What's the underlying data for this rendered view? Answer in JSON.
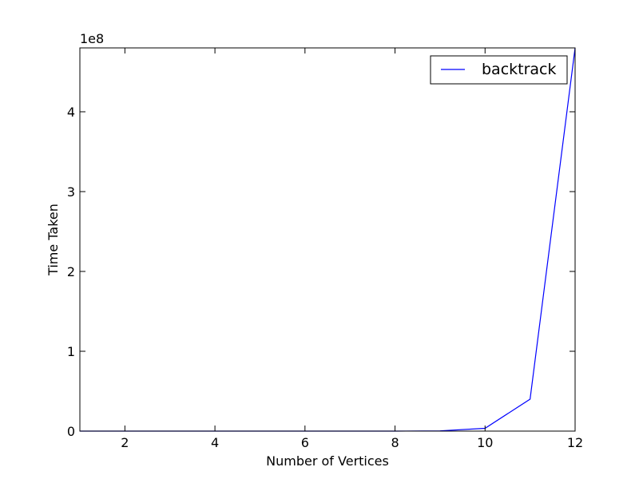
{
  "chart_data": {
    "type": "line",
    "title": "",
    "xlabel": "Number of Vertices",
    "ylabel": "Time Taken",
    "y_offset_text": "1e8",
    "y_scale_factor": 100000000,
    "xlim": [
      1,
      12
    ],
    "ylim": [
      0,
      480000000
    ],
    "xticks": [
      2,
      4,
      6,
      8,
      10,
      12
    ],
    "xtick_labels": [
      "2",
      "4",
      "6",
      "8",
      "10",
      "12"
    ],
    "yticks": [
      0,
      100000000,
      200000000,
      300000000,
      400000000
    ],
    "ytick_labels": [
      "0",
      "1",
      "2",
      "3",
      "4"
    ],
    "grid": false,
    "legend_position": "top-right",
    "series": [
      {
        "name": "backtrack",
        "color": "#0000ff",
        "x": [
          1,
          2,
          3,
          4,
          5,
          6,
          7,
          8,
          9,
          10,
          11,
          12
        ],
        "y": [
          0,
          0,
          0,
          0,
          0,
          0,
          0,
          3000,
          300000,
          3500000,
          40000000,
          480000000
        ]
      }
    ]
  }
}
